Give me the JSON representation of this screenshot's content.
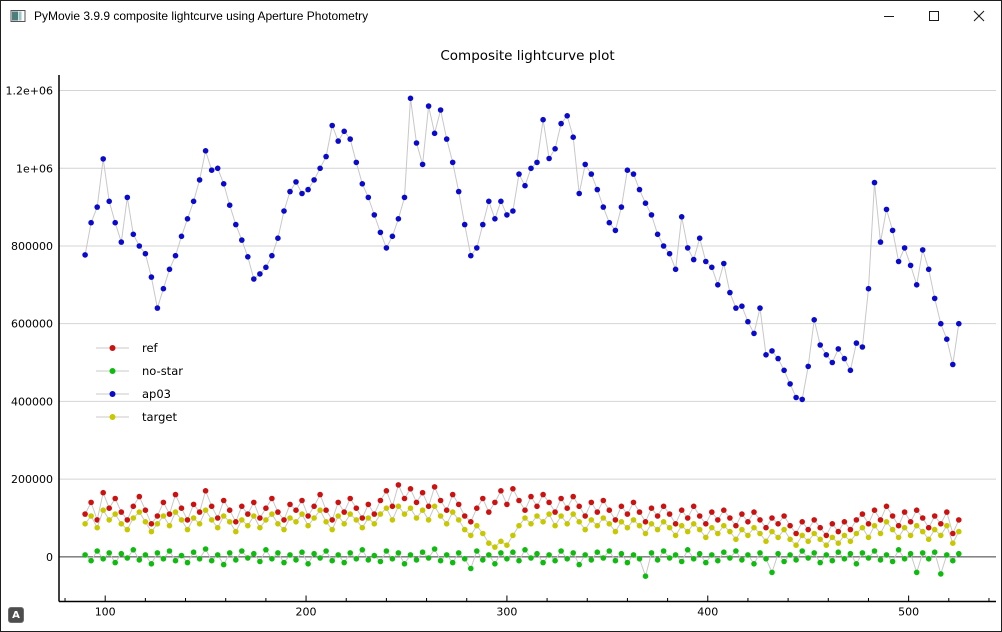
{
  "window": {
    "title": "PyMovie 3.9.9 composite lightcurve using Aperture Photometry",
    "control_icons": [
      "minimize-icon",
      "maximize-icon",
      "close-icon"
    ],
    "auto_button_label": "A"
  },
  "chart_data": {
    "type": "scatter",
    "title": "Composite lightcurve plot",
    "xlabel": "",
    "ylabel": "",
    "xlim": [
      77,
      543.5
    ],
    "ylim": [
      -115000,
      1240000
    ],
    "grid": "horizontal-only",
    "zero_line": true,
    "legend_position": "middle-left",
    "connector_color": "#c8c8c8",
    "grid_color": "#d4d4d4",
    "zero_line_color": "#3c3c3c",
    "x_ticks": [
      100,
      200,
      300,
      400,
      500
    ],
    "x_minor_tick_step": 20,
    "x_minor_tick_range": [
      80,
      540
    ],
    "y_ticks": [
      0,
      200000,
      400000,
      600000,
      800000,
      1000000,
      1200000
    ],
    "y_tick_labels": [
      "0",
      "200000",
      "400000",
      "600000",
      "800000",
      "1e+06",
      "1.2e+06"
    ],
    "x_start": 90,
    "x_step": 3,
    "value_scale": 1000,
    "series": [
      {
        "name": "ref",
        "color": "#cc1111",
        "values_k": [
          110,
          140,
          95,
          165,
          125,
          150,
          115,
          95,
          130,
          155,
          120,
          85,
          105,
          140,
          110,
          160,
          125,
          95,
          135,
          115,
          170,
          130,
          100,
          145,
          120,
          90,
          130,
          110,
          140,
          100,
          125,
          150,
          115,
          95,
          135,
          120,
          145,
          105,
          130,
          160,
          120,
          95,
          140,
          115,
          150,
          125,
          100,
          135,
          110,
          145,
          170,
          130,
          185,
          150,
          175,
          140,
          165,
          130,
          180,
          145,
          120,
          160,
          135,
          105,
          90,
          125,
          150,
          115,
          140,
          170,
          135,
          175,
          145,
          120,
          155,
          130,
          160,
          140,
          115,
          150,
          125,
          155,
          130,
          105,
          140,
          115,
          145,
          120,
          95,
          130,
          110,
          140,
          115,
          90,
          125,
          105,
          130,
          110,
          85,
          120,
          100,
          130,
          105,
          85,
          115,
          95,
          120,
          100,
          80,
          110,
          90,
          115,
          95,
          75,
          100,
          85,
          105,
          80,
          60,
          90,
          70,
          95,
          75,
          55,
          85,
          65,
          90,
          70,
          95,
          110,
          85,
          120,
          95,
          130,
          105,
          80,
          115,
          90,
          120,
          100,
          75,
          105,
          85,
          115,
          60,
          95
        ]
      },
      {
        "name": "no-star",
        "color": "#0fbb0f",
        "values_k": [
          5,
          -10,
          15,
          -5,
          10,
          -15,
          8,
          -3,
          18,
          -8,
          5,
          -18,
          10,
          -5,
          15,
          -10,
          3,
          -15,
          12,
          -5,
          20,
          -10,
          5,
          -20,
          10,
          -8,
          15,
          -3,
          8,
          -12,
          18,
          -5,
          10,
          -15,
          5,
          -8,
          12,
          -18,
          8,
          -3,
          15,
          -10,
          5,
          -15,
          10,
          -5,
          18,
          -8,
          3,
          -12,
          15,
          -5,
          10,
          -18,
          5,
          -8,
          12,
          -3,
          20,
          -10,
          5,
          -15,
          10,
          -5,
          -30,
          15,
          -8,
          5,
          -18,
          10,
          -5,
          12,
          -10,
          18,
          -3,
          8,
          -15,
          5,
          -10,
          15,
          -5,
          10,
          -20,
          5,
          -8,
          12,
          -3,
          15,
          -10,
          8,
          -15,
          5,
          -5,
          -50,
          10,
          -8,
          15,
          -3,
          5,
          -12,
          18,
          -5,
          8,
          -15,
          5,
          -10,
          12,
          -3,
          15,
          -8,
          5,
          -18,
          10,
          -5,
          -40,
          8,
          -12,
          5,
          -8,
          15,
          -3,
          10,
          -15,
          5,
          -10,
          12,
          -5,
          8,
          -18,
          10,
          -3,
          15,
          -8,
          5,
          -12,
          18,
          -5,
          8,
          -40,
          10,
          -5,
          12,
          -44,
          5,
          -10,
          8
        ]
      },
      {
        "name": "ap03",
        "color": "#0a0acd",
        "values_k": [
          777,
          860,
          900,
          1024,
          915,
          860,
          810,
          925,
          830,
          800,
          780,
          720,
          640,
          690,
          740,
          775,
          825,
          870,
          915,
          970,
          1045,
          995,
          1000,
          960,
          905,
          855,
          815,
          772,
          715,
          728,
          745,
          775,
          820,
          890,
          940,
          965,
          935,
          945,
          970,
          1000,
          1030,
          1110,
          1070,
          1095,
          1075,
          1015,
          960,
          925,
          880,
          835,
          795,
          825,
          870,
          925,
          1180,
          1065,
          1010,
          1160,
          1090,
          1150,
          1075,
          1015,
          940,
          855,
          775,
          795,
          855,
          915,
          870,
          915,
          880,
          890,
          985,
          955,
          1000,
          1015,
          1125,
          1025,
          1050,
          1115,
          1135,
          1080,
          935,
          1010,
          985,
          945,
          900,
          860,
          840,
          900,
          995,
          985,
          945,
          910,
          880,
          830,
          800,
          780,
          740,
          875,
          795,
          765,
          820,
          760,
          745,
          700,
          755,
          680,
          640,
          645,
          605,
          575,
          640,
          520,
          530,
          510,
          480,
          445,
          410,
          405,
          490,
          610,
          545,
          520,
          500,
          535,
          510,
          480,
          550,
          540,
          690,
          963,
          810,
          894,
          840,
          760,
          795,
          750,
          700,
          790,
          740,
          665,
          600,
          560,
          495,
          600
        ]
      },
      {
        "name": "target",
        "color": "#c8c800",
        "values_k": [
          85,
          105,
          75,
          120,
          95,
          110,
          85,
          70,
          100,
          115,
          90,
          65,
          85,
          105,
          80,
          115,
          95,
          70,
          100,
          85,
          120,
          95,
          75,
          105,
          90,
          65,
          95,
          80,
          105,
          75,
          95,
          110,
          85,
          70,
          100,
          90,
          110,
          80,
          100,
          120,
          90,
          70,
          105,
          85,
          110,
          95,
          75,
          100,
          85,
          110,
          125,
          95,
          130,
          110,
          125,
          100,
          120,
          95,
          130,
          105,
          85,
          115,
          95,
          70,
          55,
          80,
          60,
          35,
          25,
          40,
          30,
          55,
          80,
          100,
          85,
          105,
          90,
          110,
          80,
          105,
          85,
          110,
          90,
          70,
          95,
          80,
          100,
          85,
          65,
          90,
          75,
          95,
          80,
          60,
          85,
          70,
          90,
          75,
          55,
          80,
          65,
          85,
          70,
          50,
          75,
          60,
          80,
          65,
          45,
          70,
          55,
          75,
          60,
          40,
          65,
          50,
          70,
          45,
          30,
          55,
          40,
          60,
          45,
          30,
          50,
          35,
          55,
          40,
          60,
          75,
          50,
          80,
          60,
          90,
          70,
          50,
          75,
          55,
          80,
          65,
          45,
          70,
          55,
          80,
          35,
          65
        ]
      }
    ]
  }
}
